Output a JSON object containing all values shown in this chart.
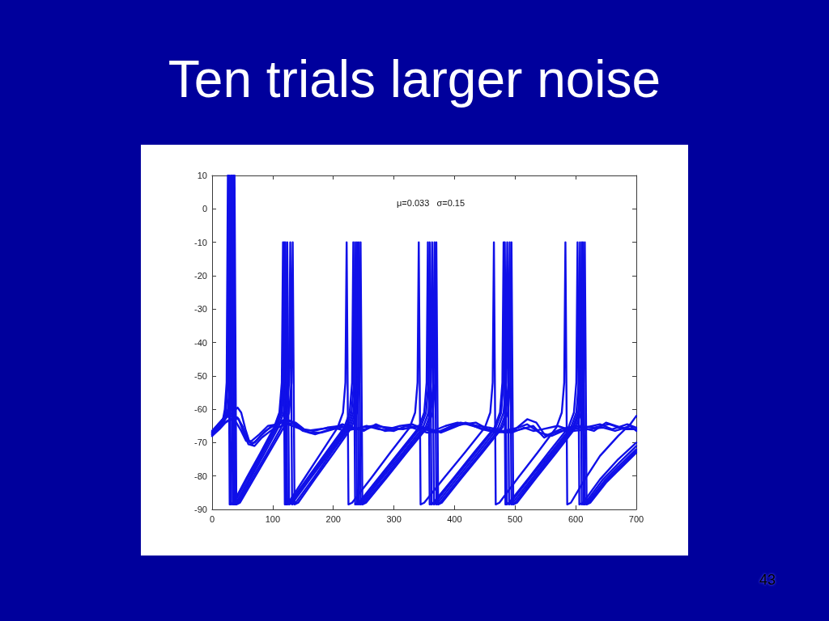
{
  "chart_data": {
    "type": "line",
    "title": "Ten trials larger noise",
    "annotations": [
      "μ=0.033   σ=0.15",
      "43"
    ],
    "xlim": [
      0,
      700
    ],
    "xticks": [
      0,
      100,
      200,
      300,
      400,
      500,
      600,
      700
    ],
    "ylim": [
      -90,
      10
    ],
    "yticks": [
      -90,
      -80,
      -70,
      -60,
      -50,
      -40,
      -30,
      -20,
      -10,
      0,
      10
    ],
    "line_style": "solid",
    "series": [
      {
        "color": "#1010e8",
        "x": [
          0,
          10,
          18,
          21,
          24,
          26,
          29,
          35,
          57,
          80,
          102,
          111,
          115,
          117,
          120,
          126,
          153,
          180,
          207,
          216,
          220,
          222,
          225,
          231,
          263,
          294,
          326,
          335,
          339,
          341,
          344,
          350,
          383,
          417,
          450,
          459,
          463,
          465,
          468,
          474,
          505,
          537,
          568,
          577,
          581,
          583,
          586,
          592,
          615,
          640,
          670,
          690,
          700
        ],
        "values": [
          -67.5,
          -65,
          -63,
          -60,
          -52,
          10,
          -88.5,
          -88,
          -80.5,
          -73,
          -65.5,
          -61,
          -52,
          -10,
          -88.5,
          -88,
          -80.5,
          -73,
          -65.5,
          -61,
          -52,
          -10,
          -88.5,
          -88,
          -80.5,
          -73,
          -65.5,
          -61,
          -52,
          -10,
          -88.5,
          -88,
          -80.5,
          -73,
          -65.5,
          -61,
          -52,
          -10,
          -88.5,
          -88,
          -80.5,
          -73,
          -65.5,
          -61,
          -52,
          -10,
          -88.5,
          -88,
          -81,
          -74,
          -68,
          -64.5,
          -62
        ]
      },
      {
        "color": "#1010e8",
        "x": [
          0,
          10,
          18,
          23,
          26,
          28,
          31,
          37,
          59,
          82,
          104,
          113,
          117,
          119,
          122,
          128,
          158,
          188,
          218,
          227,
          231,
          233,
          236,
          242,
          275,
          308,
          341,
          350,
          354,
          356,
          359,
          365,
          399,
          432,
          466,
          475,
          479,
          481,
          484,
          490,
          523,
          555,
          588,
          597,
          601,
          603,
          606,
          612,
          640,
          670,
          700
        ],
        "values": [
          -67,
          -64.5,
          -63,
          -60,
          -52,
          10,
          -88.5,
          -88,
          -80.5,
          -73,
          -65.5,
          -61,
          -52,
          -10,
          -88.5,
          -88,
          -80.5,
          -73,
          -65.5,
          -61,
          -52,
          -10,
          -88.5,
          -88,
          -80.5,
          -73,
          -65.5,
          -61,
          -52,
          -10,
          -88.5,
          -88,
          -80.5,
          -73,
          -65.5,
          -61,
          -52,
          -10,
          -88.5,
          -88,
          -80.5,
          -73,
          -65.5,
          -61,
          -52,
          -10,
          -88.5,
          -88,
          -81,
          -75,
          -70
        ]
      },
      {
        "color": "#1010e8",
        "x": [
          0,
          10,
          18,
          26,
          29,
          31,
          34,
          40,
          62,
          84,
          106,
          115,
          119,
          121,
          124,
          130,
          160,
          191,
          221,
          230,
          234,
          236,
          239,
          245,
          278,
          311,
          344,
          353,
          357,
          359,
          362,
          368,
          401,
          435,
          468,
          477,
          481,
          483,
          486,
          492,
          525,
          559,
          592,
          601,
          605,
          607,
          610,
          616,
          645,
          672,
          700
        ],
        "values": [
          -68,
          -65.5,
          -63.5,
          -60,
          -52,
          10,
          -88.5,
          -88,
          -80.5,
          -73,
          -65.5,
          -61,
          -52,
          -10,
          -88.5,
          -88,
          -80.5,
          -73,
          -65.5,
          -61,
          -52,
          -10,
          -88.5,
          -88,
          -80.5,
          -73,
          -65.5,
          -61,
          -52,
          -10,
          -88.5,
          -88,
          -80.5,
          -73,
          -65.5,
          -61,
          -52,
          -10,
          -88.5,
          -88,
          -80.5,
          -73,
          -65.5,
          -61,
          -52,
          -10,
          -88.5,
          -88,
          -81,
          -76,
          -71
        ]
      },
      {
        "color": "#1010e8",
        "x": [
          0,
          10,
          20,
          28,
          31,
          33,
          36,
          42,
          64,
          87,
          109,
          118,
          122,
          124,
          127,
          133,
          163,
          194,
          224,
          233,
          237,
          239,
          242,
          248,
          281,
          315,
          348,
          357,
          361,
          363,
          366,
          372,
          405,
          439,
          472,
          481,
          485,
          487,
          490,
          496,
          529,
          562,
          595,
          604,
          608,
          610,
          613,
          619,
          647,
          674,
          700
        ],
        "values": [
          -66.5,
          -64.5,
          -62.5,
          -60,
          -52,
          10,
          -88.5,
          -88,
          -80.5,
          -73,
          -65.5,
          -61,
          -52,
          -10,
          -88.5,
          -88,
          -80.5,
          -73,
          -65.5,
          -61,
          -52,
          -10,
          -88.5,
          -88,
          -80.5,
          -73,
          -65.5,
          -61,
          -52,
          -10,
          -88.5,
          -88,
          -80.5,
          -73,
          -65.5,
          -61,
          -52,
          -10,
          -88.5,
          -88,
          -80.5,
          -73,
          -65.5,
          -61,
          -52,
          -10,
          -88.5,
          -88,
          -81.5,
          -76.5,
          -72
        ]
      },
      {
        "color": "#1010e8",
        "x": [
          0,
          10,
          20,
          30,
          33,
          35,
          38,
          44,
          67,
          91,
          114,
          123,
          127,
          129,
          132,
          138,
          168,
          197,
          227,
          236,
          240,
          242,
          245,
          251,
          285,
          318,
          352,
          361,
          365,
          367,
          370,
          376,
          409,
          443,
          476,
          485,
          489,
          491,
          494,
          500,
          532,
          565,
          597,
          606,
          610,
          612,
          615,
          621,
          648,
          675,
          700
        ],
        "values": [
          -67,
          -65,
          -63,
          -60,
          -52,
          10,
          -88.5,
          -88,
          -80.5,
          -73,
          -65.5,
          -61,
          -52,
          -10,
          -88.5,
          -88,
          -80.5,
          -73,
          -65.5,
          -61,
          -52,
          -10,
          -88.5,
          -88,
          -80.5,
          -73,
          -65.5,
          -61,
          -52,
          -10,
          -88.5,
          -88,
          -80.5,
          -73,
          -65.5,
          -61,
          -52,
          -10,
          -88.5,
          -88,
          -80.5,
          -73,
          -65.5,
          -61,
          -52,
          -10,
          -88.5,
          -88,
          -82,
          -77,
          -72.5
        ]
      },
      {
        "color": "#1010e8",
        "x": [
          0,
          10,
          20,
          32,
          35,
          37,
          40,
          46,
          70,
          94,
          118,
          127,
          131,
          133,
          136,
          142,
          171,
          201,
          230,
          239,
          243,
          245,
          248,
          254,
          288,
          321,
          355,
          364,
          368,
          370,
          373,
          379,
          412,
          446,
          479,
          488,
          492,
          494,
          497,
          503,
          535,
          568,
          600,
          609,
          613,
          615,
          618,
          624,
          650,
          675,
          700
        ],
        "values": [
          -67.5,
          -65.5,
          -63.5,
          -60,
          -52,
          10,
          -88.5,
          -88,
          -80.5,
          -73,
          -65.5,
          -61,
          -52,
          -10,
          -88.5,
          -88,
          -80.5,
          -73,
          -65.5,
          -61,
          -52,
          -10,
          -88.5,
          -88,
          -80.5,
          -73,
          -65.5,
          -61,
          -52,
          -10,
          -88.5,
          -88,
          -80.5,
          -73,
          -65.5,
          -61,
          -52,
          -10,
          -88.5,
          -88,
          -80.5,
          -73,
          -65.5,
          -61,
          -52,
          -10,
          -88.5,
          -88,
          -82,
          -77.5,
          -73
        ]
      },
      {
        "color": "#1010e8",
        "x": [
          0,
          10,
          20,
          30,
          42,
          48,
          55,
          62,
          70,
          80,
          95,
          110,
          120,
          130,
          145,
          160,
          180,
          200,
          225,
          250,
          270,
          290,
          310,
          330,
          350,
          370,
          395,
          410,
          425,
          445,
          470,
          500,
          520,
          535,
          550,
          575,
          600,
          630,
          650,
          675,
          700
        ],
        "values": [
          -67,
          -65,
          -63,
          -61.5,
          -59.5,
          -61,
          -66,
          -70,
          -70,
          -68,
          -65.5,
          -64,
          -63,
          -63.5,
          -65.5,
          -67,
          -67,
          -66,
          -65,
          -66.5,
          -64.5,
          -66,
          -65,
          -64.5,
          -66,
          -67,
          -65,
          -64,
          -64.5,
          -66,
          -67,
          -66,
          -63,
          -64,
          -68,
          -66,
          -65,
          -66.5,
          -64,
          -65.5,
          -66
        ]
      },
      {
        "color": "#1010e8",
        "x": [
          0,
          10,
          20,
          32,
          42,
          50,
          58,
          66,
          75,
          88,
          105,
          118,
          135,
          150,
          170,
          195,
          215,
          235,
          255,
          275,
          300,
          320,
          345,
          365,
          385,
          405,
          420,
          440,
          460,
          485,
          510,
          530,
          548,
          565,
          590,
          615,
          640,
          660,
          685,
          700
        ],
        "values": [
          -66.5,
          -64.5,
          -62.5,
          -62,
          -62.5,
          -65,
          -69,
          -70.5,
          -69,
          -66.5,
          -64.5,
          -64,
          -64.5,
          -66.5,
          -67.5,
          -66,
          -64.5,
          -66,
          -65,
          -66,
          -66.5,
          -65,
          -65.5,
          -66.5,
          -65,
          -64,
          -64.5,
          -65.5,
          -66.5,
          -67,
          -66,
          -65,
          -68.5,
          -67,
          -66,
          -65.5,
          -64.5,
          -66,
          -64.5,
          -65.5
        ]
      },
      {
        "color": "#1010e8",
        "x": [
          0,
          12,
          22,
          35,
          44,
          52,
          60,
          70,
          82,
          100,
          115,
          125,
          140,
          155,
          175,
          200,
          220,
          245,
          265,
          285,
          305,
          330,
          355,
          380,
          400,
          415,
          435,
          455,
          475,
          495,
          515,
          530,
          545,
          570,
          595,
          620,
          645,
          665,
          690,
          700
        ],
        "values": [
          -68,
          -66,
          -64,
          -62.5,
          -63,
          -67,
          -70.5,
          -71,
          -68.5,
          -66,
          -65,
          -64.5,
          -65.5,
          -66.5,
          -66,
          -65.5,
          -66.5,
          -65.5,
          -65,
          -66.5,
          -66,
          -65.5,
          -67,
          -66.5,
          -65,
          -64.5,
          -64,
          -66,
          -66.5,
          -67,
          -65.5,
          -66.5,
          -66,
          -65,
          -66.5,
          -66,
          -65.5,
          -66.5,
          -65,
          -66.5
        ]
      },
      {
        "color": "#1010e8",
        "x": [
          0,
          10,
          20,
          30,
          40,
          48,
          56,
          65,
          78,
          92,
          108,
          122,
          138,
          152,
          168,
          190,
          212,
          232,
          252,
          268,
          290,
          315,
          340,
          360,
          378,
          398,
          418,
          438,
          458,
          480,
          505,
          520,
          540,
          560,
          585,
          605,
          630,
          655,
          680,
          700
        ],
        "values": [
          -67.5,
          -66,
          -64,
          -63,
          -64,
          -66.5,
          -69.5,
          -69.5,
          -67.5,
          -65,
          -64.5,
          -63.5,
          -64,
          -66,
          -66.5,
          -65.5,
          -65,
          -66,
          -66,
          -65,
          -65.5,
          -66,
          -65,
          -66,
          -67,
          -65.5,
          -64,
          -65,
          -65.5,
          -66.5,
          -65.5,
          -64.5,
          -67,
          -68,
          -66,
          -65,
          -65.5,
          -64.5,
          -66,
          -66
        ]
      }
    ]
  }
}
